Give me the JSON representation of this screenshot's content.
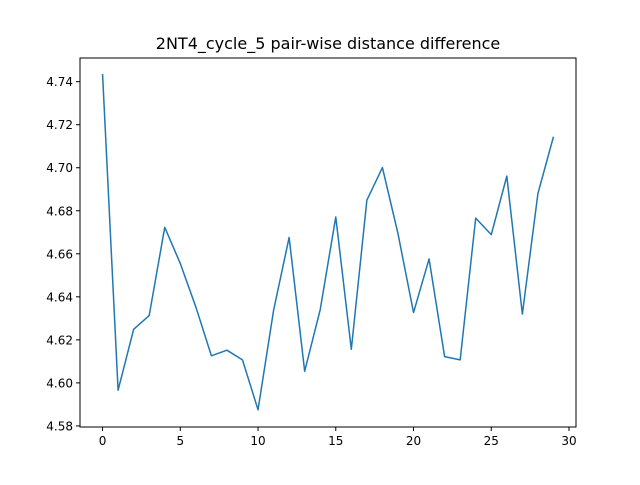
{
  "chart_data": {
    "type": "line",
    "title": "2NT4_cycle_5 pair-wise distance difference",
    "xlabel": "",
    "ylabel": "",
    "xlim": [
      -1.45,
      30.45
    ],
    "ylim": [
      4.5795,
      4.751
    ],
    "xticks": [
      0,
      5,
      10,
      15,
      20,
      25,
      30
    ],
    "xtick_labels": [
      "0",
      "5",
      "10",
      "15",
      "20",
      "25",
      "30"
    ],
    "yticks": [
      4.58,
      4.6,
      4.62,
      4.64,
      4.66,
      4.68,
      4.7,
      4.72,
      4.74
    ],
    "ytick_labels": [
      "4.58",
      "4.60",
      "4.62",
      "4.64",
      "4.66",
      "4.68",
      "4.70",
      "4.72",
      "4.74"
    ],
    "grid": false,
    "series": [
      {
        "color": "#1f77b4",
        "x": [
          0,
          1,
          2,
          3,
          4,
          5,
          6,
          7,
          8,
          9,
          10,
          11,
          12,
          13,
          14,
          15,
          16,
          17,
          18,
          19,
          20,
          21,
          22,
          23,
          24,
          25,
          26,
          27,
          28,
          29
        ],
        "y": [
          4.7436,
          4.5966,
          4.6249,
          4.6313,
          4.6723,
          4.6555,
          4.6353,
          4.6126,
          4.6152,
          4.6107,
          4.5875,
          4.6337,
          4.6676,
          4.6054,
          4.6341,
          4.6771,
          4.6156,
          4.6849,
          4.7001,
          4.6694,
          4.6327,
          4.6576,
          4.6122,
          4.6107,
          4.6766,
          4.6689,
          4.6961,
          4.632,
          4.688,
          4.7144
        ]
      }
    ]
  }
}
